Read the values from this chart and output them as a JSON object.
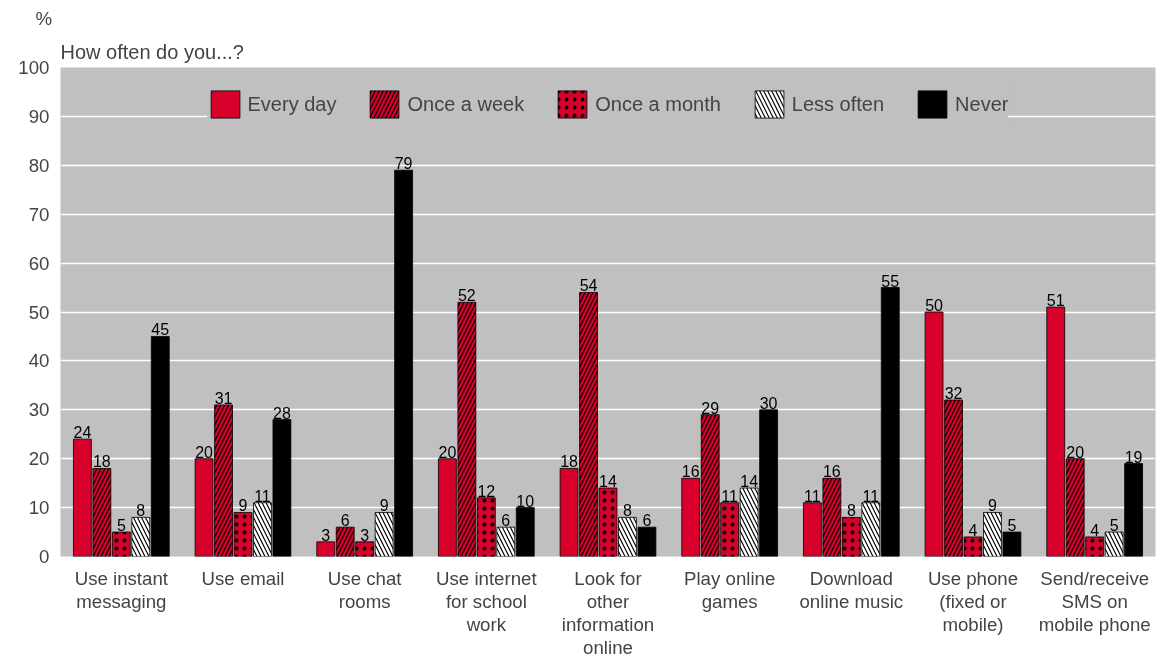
{
  "chart_data": {
    "type": "bar",
    "title": "How often do you...?",
    "ylabel": "%",
    "categories": [
      "Use instant messaging",
      "Use email",
      "Use chat rooms",
      "Use internet for school work",
      "Look for other information online",
      "Play online games",
      "Download online music",
      "Use phone (fixed or mobile)",
      "Send/receive SMS on mobile phone"
    ],
    "series": [
      {
        "name": "Every day",
        "color": "#d7002b",
        "values": [
          24,
          20,
          3,
          20,
          18,
          16,
          11,
          50,
          51
        ]
      },
      {
        "name": "Once a week",
        "color": "#d7002b",
        "values": [
          18,
          31,
          6,
          52,
          54,
          29,
          16,
          32,
          20
        ]
      },
      {
        "name": "Once a month",
        "color": "#d7002b",
        "values": [
          5,
          9,
          3,
          12,
          14,
          11,
          8,
          4,
          4
        ]
      },
      {
        "name": "Less often",
        "color": "#ffffff",
        "values": [
          8,
          11,
          9,
          6,
          8,
          14,
          11,
          9,
          5
        ]
      },
      {
        "name": "Never",
        "color": "#000000",
        "values": [
          45,
          28,
          79,
          10,
          6,
          30,
          55,
          5,
          19
        ]
      }
    ],
    "ylim": [
      0,
      100
    ],
    "yticks": [
      0,
      10,
      20,
      30,
      40,
      50,
      60,
      70,
      80,
      90,
      100
    ],
    "grid": "y",
    "legend": "top",
    "data_labels": true
  }
}
